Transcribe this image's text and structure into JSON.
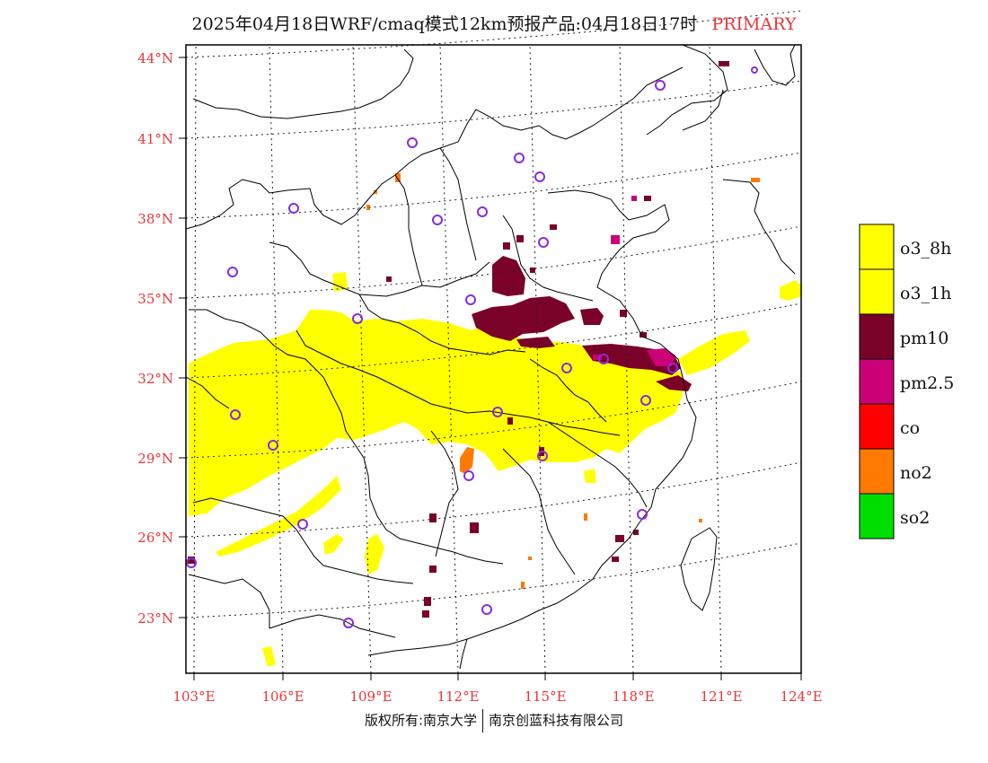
{
  "header": {
    "title": "2025年04月18日WRF/cmaq模式12km预报产品:04月18日17时",
    "primary_label": "PRIMARY"
  },
  "axes": {
    "lat_labels": [
      "44°N",
      "41°N",
      "38°N",
      "35°N",
      "32°N",
      "29°N",
      "26°N",
      "23°N"
    ],
    "lon_labels": [
      "103°E",
      "106°E",
      "109°E",
      "112°E",
      "115°E",
      "118°E",
      "121°E",
      "124°E"
    ]
  },
  "legend": {
    "items": [
      {
        "label": "o3_8h",
        "color": "#ffff00"
      },
      {
        "label": "o3_1h",
        "color": "#ffff00"
      },
      {
        "label": "pm10",
        "color": "#7a0128"
      },
      {
        "label": "pm2.5",
        "color": "#cc0077"
      },
      {
        "label": "co",
        "color": "#ff0000"
      },
      {
        "label": "no2",
        "color": "#ff7a00"
      },
      {
        "label": "so2",
        "color": "#00dd00"
      }
    ]
  },
  "footer": {
    "left": "版权所有:南京大学",
    "right": "南京创蓝科技有限公司"
  },
  "colors": {
    "yellow": "#ffff00",
    "maroon": "#7a0128",
    "magenta": "#cc0077",
    "orange": "#ff7a00",
    "station": "#8a2be2",
    "tick": "#e8373a"
  }
}
